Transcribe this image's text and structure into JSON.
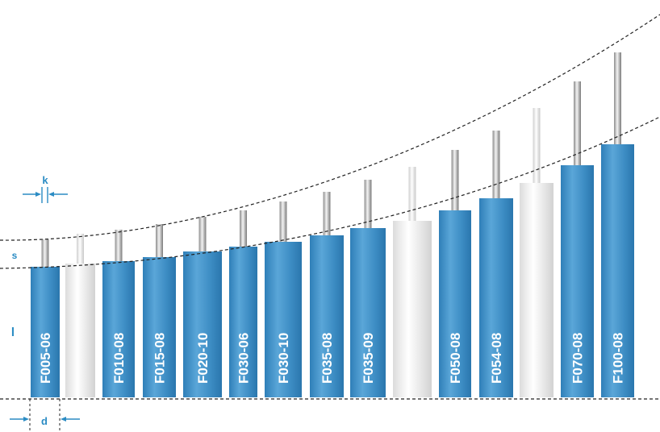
{
  "dimensions": {
    "k": "k",
    "s": "s",
    "l": "l",
    "d": "d"
  },
  "colors": {
    "accent": "#2b8cc4",
    "bar_blue": "#3a8bc2",
    "bar_white": "#f0f0f0",
    "pin": "#b8b8b8"
  },
  "products": [
    {
      "label": "F005-06",
      "style": "blue"
    },
    {
      "label": "",
      "style": "white"
    },
    {
      "label": "F010-08",
      "style": "blue"
    },
    {
      "label": "F015-08",
      "style": "blue"
    },
    {
      "label": "F020-10",
      "style": "blue"
    },
    {
      "label": "F030-06",
      "style": "blue"
    },
    {
      "label": "F030-10",
      "style": "blue"
    },
    {
      "label": "F035-08",
      "style": "blue"
    },
    {
      "label": "F035-09",
      "style": "blue"
    },
    {
      "label": "",
      "style": "white"
    },
    {
      "label": "F050-08",
      "style": "blue"
    },
    {
      "label": "F054-08",
      "style": "blue"
    },
    {
      "label": "",
      "style": "white"
    },
    {
      "label": "F070-08",
      "style": "blue"
    },
    {
      "label": "F100-08",
      "style": "blue"
    }
  ]
}
